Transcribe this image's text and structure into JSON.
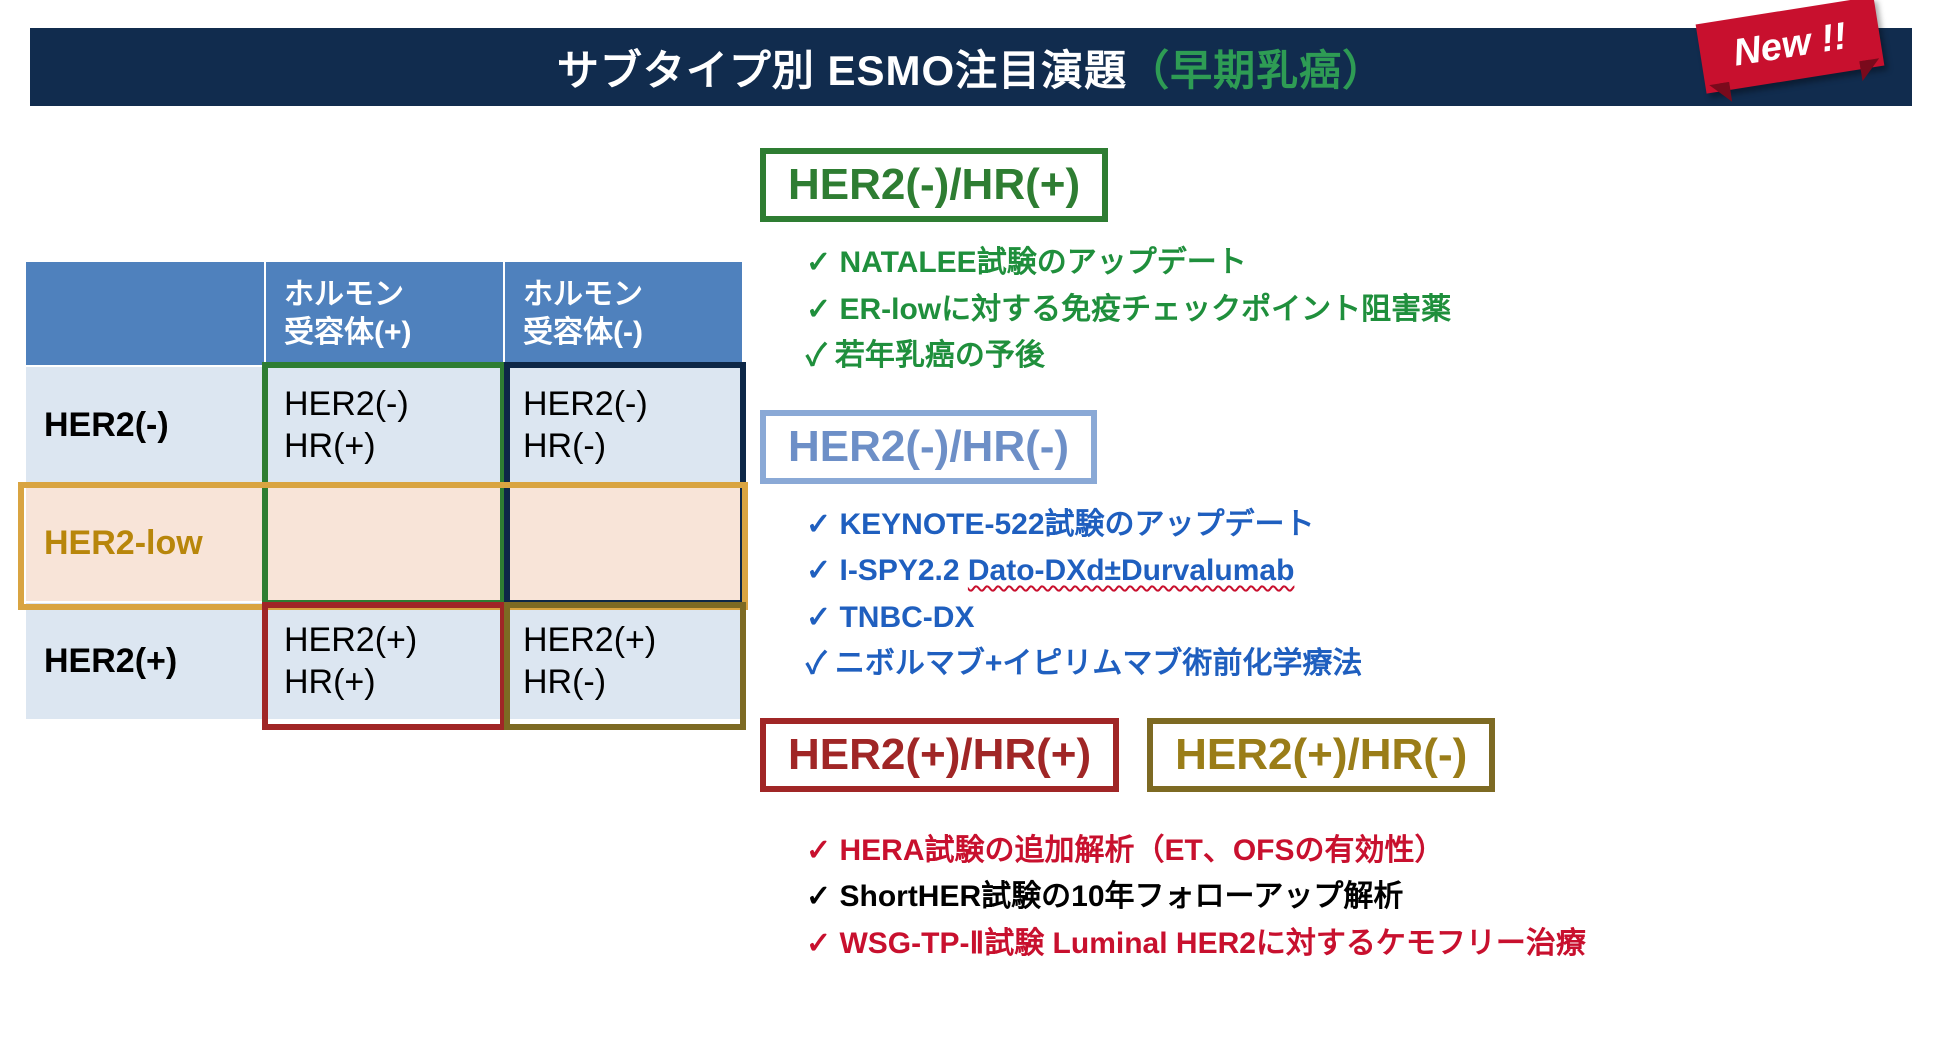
{
  "title": {
    "main": "サブタイプ別  ESMO注目演題",
    "accent": "（早期乳癌）",
    "ribbon": "New !!",
    "bar_bg": "#112c4e",
    "accent_color": "#2e9c54",
    "ribbon_bg": "#c8102e"
  },
  "matrix": {
    "header_bg": "#4f81bd",
    "cell_bg": "#dce6f1",
    "low_bg": "#f8e4d8",
    "columns_blank": "",
    "columns": [
      "ホルモン\n受容体(+)",
      "ホルモン\n受容体(-)"
    ],
    "rows": [
      {
        "label": "HER2(-)",
        "cells": [
          "HER2(-)\nHR(+)",
          "HER2(-)\nHR(-)"
        ]
      },
      {
        "label": "HER2-low",
        "low": true,
        "cells": [
          "",
          ""
        ]
      },
      {
        "label": "HER2(+)",
        "cells": [
          "HER2(+)\nHR(+)",
          "HER2(+)\nHR(-)"
        ]
      }
    ],
    "overlays": [
      {
        "name": "green",
        "color": "#2e7d32"
      },
      {
        "name": "navy",
        "color": "#0d2747"
      },
      {
        "name": "orange",
        "color": "#d9a441"
      },
      {
        "name": "red",
        "color": "#a02626"
      },
      {
        "name": "olive",
        "color": "#7d6a23"
      }
    ]
  },
  "categories": {
    "her2neg_hrpos": {
      "label": "HER2(-)/HR(+)",
      "color": "#2e7d32",
      "items": [
        "NATALEE試験のアップデート",
        "ER-lowに対する免疫チェックポイント阻害薬",
        "若年乳癌の予後"
      ]
    },
    "her2neg_hrneg": {
      "label": "HER2(-)/HR(-)",
      "color": "#6d8fc7",
      "items_prefix_0": "KEYNOTE-522試験のアップデート",
      "items_prefix_1a": "I-SPY2.2 ",
      "items_prefix_1b_squiggle": "Dato-DXd±Durvalumab",
      "items_prefix_2": "TNBC-DX",
      "items_prefix_3": "ニボルマブ+イピリムマブ術前化学療法"
    },
    "her2pos_hrpos": {
      "label": "HER2(+)/HR(+)",
      "color": "#a02626"
    },
    "her2pos_hrneg": {
      "label": "HER2(+)/HR(-)",
      "color": "#9a7d18"
    },
    "her2pos_items": {
      "i0": "HERA試験の追加解析（ET、OFSの有効性）",
      "i1": "ShortHER試験の10年フォローアップ解析",
      "i2": "WSG-TP-Ⅱ試験 Luminal HER2に対するケモフリー治療",
      "i1_black": true
    }
  }
}
